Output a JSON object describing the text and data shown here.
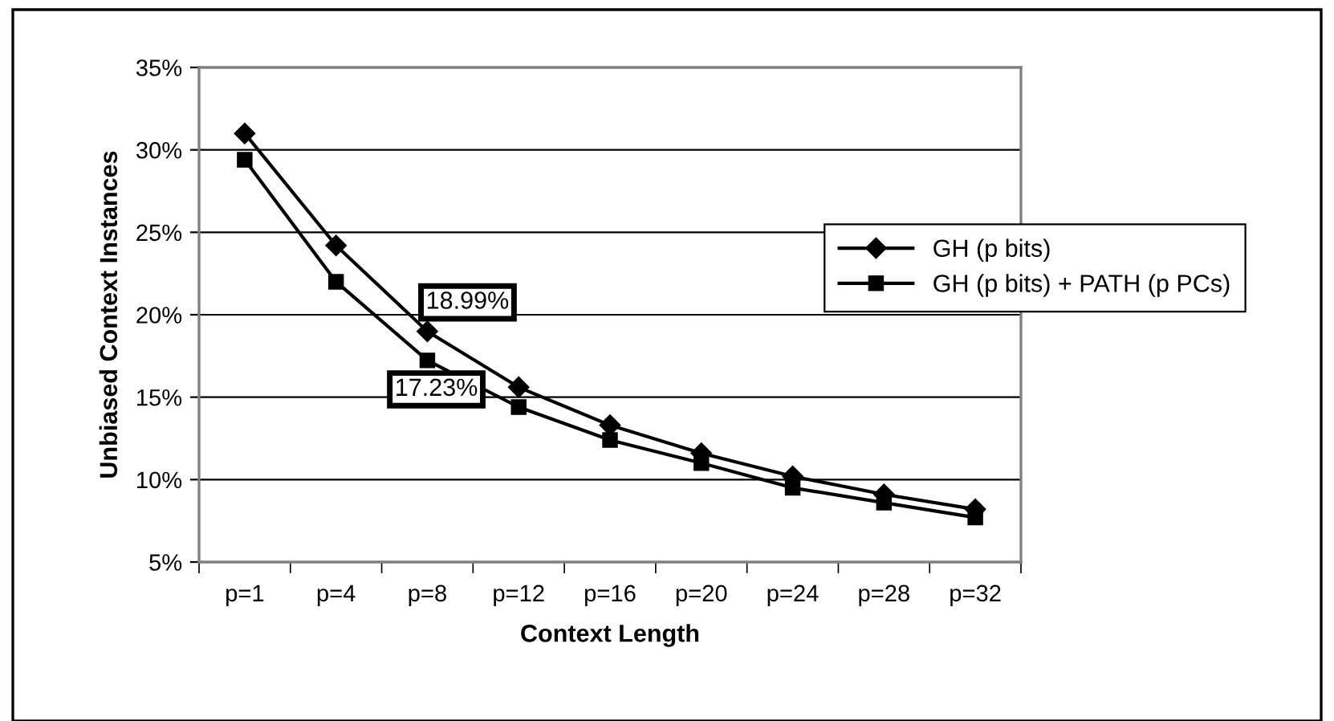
{
  "chart_data": {
    "type": "line",
    "xlabel": "Context Length",
    "ylabel": "Unbiased Context Instances",
    "categories": [
      "p=1",
      "p=4",
      "p=8",
      "p=12",
      "p=16",
      "p=20",
      "p=24",
      "p=28",
      "p=32"
    ],
    "series": [
      {
        "name": "GH (p bits)",
        "color": "#000000",
        "marker": "diamond",
        "values": [
          31.0,
          24.2,
          18.99,
          15.6,
          13.3,
          11.6,
          10.2,
          9.1,
          8.2
        ],
        "value_labels": [
          null,
          null,
          "18.99%",
          null,
          null,
          null,
          null,
          null,
          null
        ]
      },
      {
        "name": "GH (p bits) + PATH (p PCs)",
        "color": "#000000",
        "marker": "square",
        "values": [
          29.4,
          22.0,
          17.23,
          14.4,
          12.4,
          11.0,
          9.5,
          8.6,
          7.7
        ],
        "value_labels": [
          null,
          null,
          "17.23%",
          null,
          null,
          null,
          null,
          null,
          null
        ]
      }
    ],
    "ylim": [
      5,
      35
    ],
    "yticks": [
      {
        "value": 5,
        "label": "5%"
      },
      {
        "value": 10,
        "label": "10%"
      },
      {
        "value": 15,
        "label": "15%"
      },
      {
        "value": 20,
        "label": "20%"
      },
      {
        "value": 25,
        "label": "25%"
      },
      {
        "value": 30,
        "label": "30%"
      },
      {
        "value": 35,
        "label": "35%"
      }
    ],
    "grid": "y",
    "legend": "right",
    "line_style": "solid"
  }
}
